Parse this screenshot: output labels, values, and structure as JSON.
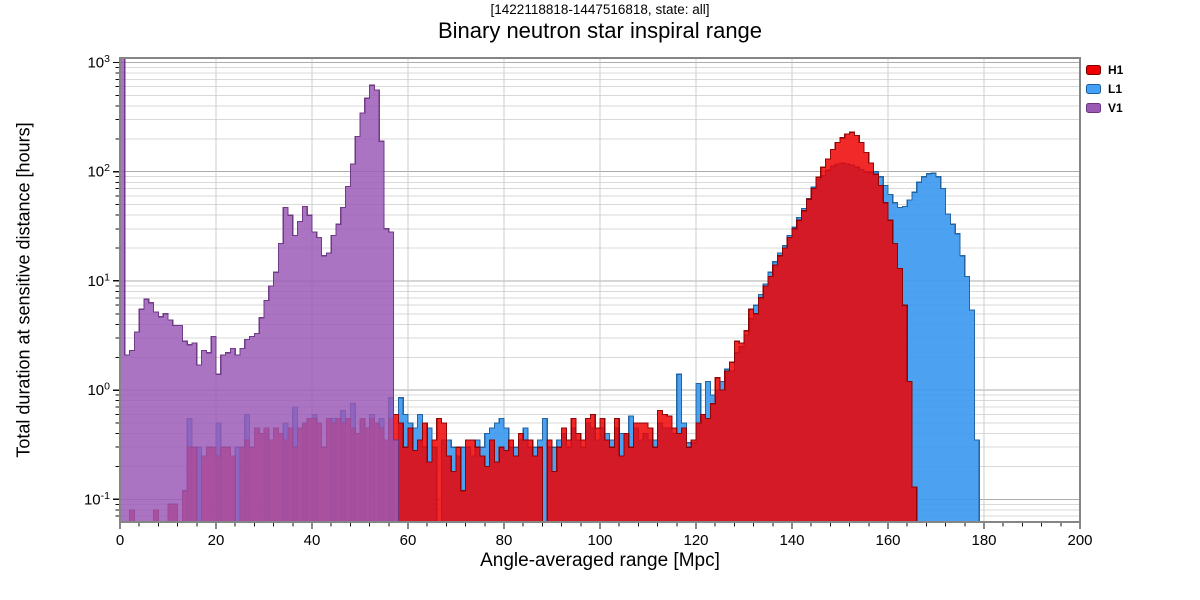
{
  "figure": {
    "suptitle": "[1422118818-1447516818, state: all]",
    "title": "Binary neutron star inspiral range"
  },
  "axes": {
    "xlabel": "Angle-averaged range [Mpc]",
    "ylabel": "Total duration at sensitive distance [hours]"
  },
  "legend": {
    "position": "upper-right-outside",
    "entries": [
      {
        "label": "H1",
        "color": "#ee0000",
        "edge": "#7f0000"
      },
      {
        "label": "L1",
        "color": "#45a1f7",
        "edge": "#1d5f9b"
      },
      {
        "label": "V1",
        "color": "#9b59b6",
        "edge": "#6c3483"
      }
    ]
  },
  "chart_data": {
    "type": "bar",
    "subtype": "overlaid-step-histogram",
    "title": "Binary neutron star inspiral range",
    "suptitle": "[1422118818-1447516818, state: all]",
    "xlabel": "Angle-averaged range [Mpc]",
    "ylabel": "Total duration at sensitive distance [hours]",
    "xlim": [
      0,
      200
    ],
    "ylim": [
      0.062,
      1100
    ],
    "yscale": "log",
    "bin_width_mpc": 1,
    "x_minor_step": 4,
    "grid": "horizontal major+minor, vertical major",
    "xticks": [
      0,
      20,
      40,
      60,
      80,
      100,
      120,
      140,
      160,
      180,
      200
    ],
    "xtick_labels": [
      "0",
      "20",
      "40",
      "60",
      "80",
      "100",
      "120",
      "140",
      "160",
      "180",
      "200"
    ],
    "yticks": [
      {
        "value": 1000,
        "label": "10³"
      },
      {
        "value": 100,
        "label": "10²"
      },
      {
        "value": 10,
        "label": "10¹"
      },
      {
        "value": 1,
        "label": "10⁰"
      },
      {
        "value": 0.1,
        "label": "10⁻¹"
      }
    ],
    "series": [
      {
        "name": "L1",
        "fill": "#3d9af0",
        "edge": "#1d5f9b",
        "opacity": 0.92,
        "values": [
          0,
          0,
          0,
          0,
          0,
          0,
          0,
          0,
          0,
          0,
          0,
          0,
          0,
          0,
          0.55,
          0,
          0.3,
          0,
          0,
          0,
          0.5,
          0,
          0,
          0,
          0.3,
          0,
          0.6,
          0,
          0,
          0,
          0.4,
          0,
          0,
          0,
          0.5,
          0,
          0.7,
          0,
          0.5,
          0,
          0.6,
          0,
          0,
          0,
          0.55,
          0,
          0.65,
          0,
          0.75,
          0,
          0.5,
          0,
          0.6,
          0,
          0.55,
          0,
          0.85,
          0,
          0.85,
          0.6,
          0.5,
          0.45,
          0.6,
          0.3,
          0.45,
          0.3,
          0,
          0.35,
          0.35,
          0.3,
          0.25,
          0.3,
          0.3,
          0.25,
          0.35,
          0.3,
          0.4,
          0.45,
          0.5,
          0.55,
          0.45,
          0.3,
          0.3,
          0.35,
          0.45,
          0.3,
          0.3,
          0.35,
          0.55,
          0.3,
          0.3,
          0.35,
          0.4,
          0.3,
          0.45,
          0.35,
          0.3,
          0.5,
          0.45,
          0.35,
          0.45,
          0.4,
          0.35,
          0.45,
          0.4,
          0.4,
          0.58,
          0.45,
          0.35,
          0.4,
          0.35,
          0.35,
          0.5,
          0.45,
          0.45,
          0.4,
          1.4,
          0.5,
          0.33,
          0.33,
          1.15,
          0.6,
          1.2,
          0.9,
          1,
          1.2,
          1.55,
          1.5,
          2.2,
          2.5,
          3.2,
          4.5,
          6,
          7.5,
          9.4,
          12,
          15,
          18,
          21,
          26,
          31,
          38,
          46,
          57,
          72,
          85,
          92,
          103,
          112,
          118,
          120,
          118,
          115,
          110,
          105,
          100,
          98,
          100,
          90,
          75,
          62,
          52,
          47,
          48,
          55,
          65,
          80,
          90,
          96,
          97,
          90,
          70,
          41,
          33,
          27,
          17,
          11,
          5.4,
          0.35,
          0,
          0,
          0,
          0,
          0,
          0,
          0,
          0,
          0,
          0,
          0,
          0,
          0,
          0,
          0,
          0,
          0,
          0,
          0,
          0,
          0
        ]
      },
      {
        "name": "H1",
        "fill": "#ee0000",
        "edge": "#8b0000",
        "opacity": 0.84,
        "values": [
          0,
          0,
          0.08,
          0,
          0,
          0,
          0,
          0.08,
          0,
          0,
          0.09,
          0.09,
          0,
          0.12,
          0.3,
          0.3,
          0,
          0.25,
          0.3,
          0.3,
          0.25,
          0.3,
          0.3,
          0.25,
          0,
          0.3,
          0.35,
          0.3,
          0.45,
          0.4,
          0.45,
          0.35,
          0.45,
          0.4,
          0.35,
          0.45,
          0.3,
          0.45,
          0.5,
          0.55,
          0.55,
          0.5,
          0.3,
          0.55,
          0.5,
          0.55,
          0.5,
          0.55,
          0.45,
          0.4,
          0.55,
          0.45,
          0.55,
          0.5,
          0.45,
          0.35,
          0.55,
          0.6,
          0.5,
          0.3,
          0.45,
          0.28,
          0.35,
          0.5,
          0.22,
          0.35,
          0.55,
          0.5,
          0.25,
          0.18,
          0.3,
          0.12,
          0.35,
          0.35,
          0.3,
          0.25,
          0.2,
          0.35,
          0.22,
          0.3,
          0.28,
          0.35,
          0.25,
          0.4,
          0.35,
          0.35,
          0.25,
          0.3,
          0,
          0.35,
          0.18,
          0.3,
          0.45,
          0.35,
          0.55,
          0.4,
          0.35,
          0.55,
          0.6,
          0.45,
          0.55,
          0.35,
          0.3,
          0.55,
          0.25,
          0.4,
          0.3,
          0.5,
          0.5,
          0.5,
          0.45,
          0.3,
          0.65,
          0.6,
          0.58,
          0.45,
          0.4,
          0.45,
          0.3,
          0.35,
          0.5,
          0.6,
          0.55,
          0.75,
          1.3,
          1,
          1.5,
          1.8,
          2.8,
          2.7,
          3.5,
          5.5,
          5,
          7,
          9,
          11,
          14,
          17,
          20,
          25,
          30,
          36,
          44,
          56,
          70,
          89,
          110,
          131,
          160,
          185,
          205,
          222,
          230,
          215,
          185,
          150,
          120,
          95,
          75,
          52,
          36,
          22,
          13,
          6,
          1.2,
          0.13,
          0,
          0,
          0,
          0,
          0,
          0,
          0,
          0,
          0,
          0,
          0,
          0,
          0,
          0,
          0,
          0,
          0,
          0,
          0,
          0,
          0,
          0,
          0,
          0,
          0,
          0,
          0,
          0,
          0,
          0,
          0,
          0,
          0,
          0
        ]
      },
      {
        "name": "V1",
        "fill": "#9b59b6",
        "edge": "#6c3483",
        "opacity": 0.84,
        "values": [
          1100,
          2.1,
          2.3,
          3.4,
          5.5,
          6.8,
          6.3,
          5.2,
          4.7,
          5,
          4.4,
          3.9,
          3.9,
          2.8,
          2.6,
          2.7,
          1.7,
          2.3,
          2.2,
          3.1,
          1.4,
          2.1,
          2.2,
          2.4,
          2.1,
          2.4,
          2.9,
          3.1,
          3.3,
          4.6,
          6.6,
          9,
          12,
          22,
          47,
          40,
          26,
          35,
          48,
          40,
          28,
          25,
          17,
          18,
          26,
          33,
          47,
          73,
          118,
          210,
          345,
          470,
          620,
          560,
          190,
          30,
          28,
          0.35,
          0,
          0,
          0,
          0,
          0,
          0,
          0,
          0,
          0,
          0,
          0,
          0,
          0,
          0,
          0,
          0,
          0,
          0,
          0,
          0,
          0,
          0,
          0,
          0,
          0,
          0,
          0,
          0,
          0,
          0,
          0,
          0,
          0,
          0,
          0,
          0,
          0,
          0,
          0,
          0,
          0,
          0,
          0,
          0,
          0,
          0,
          0,
          0,
          0,
          0,
          0,
          0,
          0,
          0,
          0,
          0,
          0,
          0,
          0,
          0,
          0,
          0,
          0,
          0,
          0,
          0,
          0,
          0,
          0,
          0,
          0,
          0,
          0,
          0,
          0,
          0,
          0,
          0,
          0,
          0,
          0,
          0,
          0,
          0,
          0,
          0,
          0,
          0,
          0,
          0,
          0,
          0,
          0,
          0,
          0,
          0,
          0,
          0,
          0,
          0,
          0,
          0,
          0,
          0,
          0,
          0,
          0,
          0,
          0,
          0,
          0,
          0,
          0,
          0,
          0,
          0,
          0,
          0,
          0,
          0,
          0,
          0,
          0,
          0,
          0,
          0,
          0,
          0,
          0,
          0,
          0,
          0,
          0,
          0,
          0,
          0,
          0,
          0,
          0,
          0,
          0,
          0
        ]
      }
    ]
  }
}
